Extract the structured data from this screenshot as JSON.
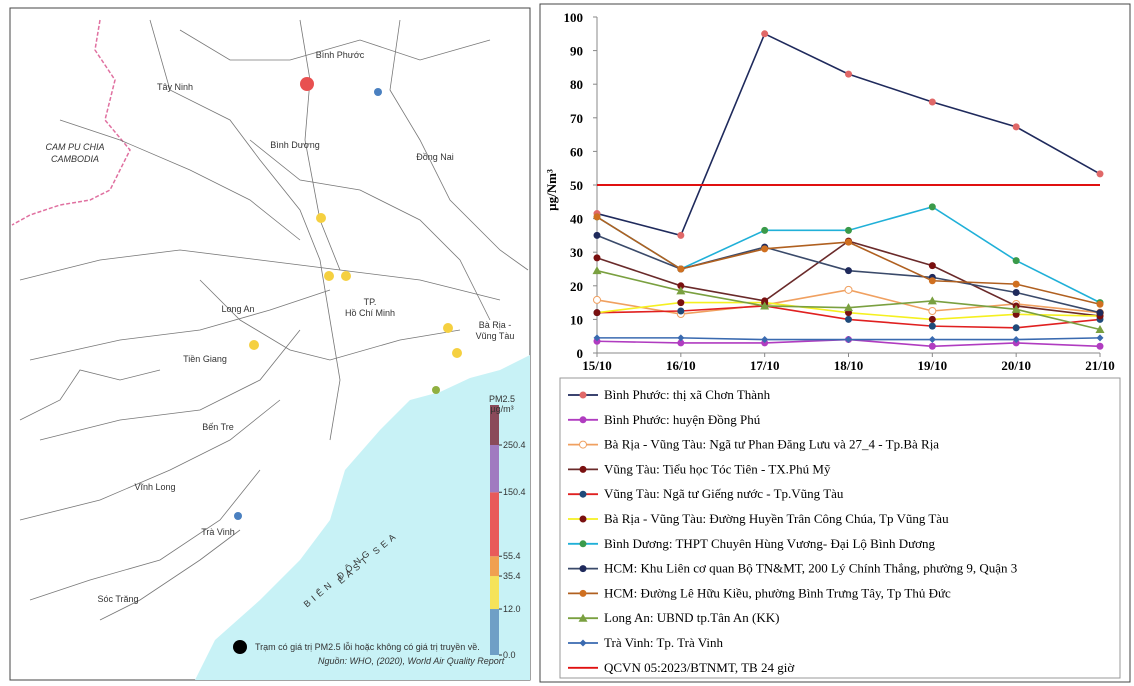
{
  "map": {
    "labels": [
      "Bình Phước",
      "Tây Ninh",
      "CAM PU CHIA",
      "CAMBODIA",
      "Bình Dương",
      "Đồng Nai",
      "Long An",
      "TP.",
      "Hồ Chí Minh",
      "Bà Rịa -",
      "Vũng Tàu",
      "Tiền Giang",
      "Bến Tre",
      "Vĩnh Long",
      "Trà Vinh",
      "Sóc Trăng",
      "BIỂN ĐÔNG",
      "EAST SEA"
    ],
    "colorbar": {
      "title": "PM2.5",
      "unit": "µg/m³",
      "ticks": [
        {
          "value": 0,
          "label": "0.0"
        },
        {
          "value": 12,
          "label": "12.0"
        },
        35.4,
        55.4,
        150.4,
        250.4
      ],
      "colors": [
        "#6f9fc6",
        "#f5e35a",
        "#f0a050",
        "#e85a5a",
        "#a07ac0"
      ]
    },
    "note": "Trạm có giá trị PM2.5 lỗi hoặc không có giá trị truyền về.",
    "source": "Nguồn: WHO, (2020), World Air Quality Report"
  },
  "chart_data": {
    "type": "line",
    "y_label": "µg/Nm³",
    "categories": [
      "15/10",
      "16/10",
      "17/10",
      "18/10",
      "19/10",
      "20/10",
      "21/10"
    ],
    "ylim": [
      0,
      100
    ],
    "yticks": [
      0,
      10,
      20,
      30,
      40,
      50,
      60,
      70,
      80,
      90,
      100
    ],
    "series": [
      {
        "name": "Bình Phước: thị xã Chơn Thành",
        "color": "#1f2a5c",
        "marker": "circle",
        "marker_color": "#e06868",
        "values": [
          41.5,
          35,
          95,
          83,
          74.7,
          67.3,
          53.3
        ]
      },
      {
        "name": "Bình Phước: huyện Đồng Phú",
        "color": "#b03cc0",
        "marker": "circle",
        "marker_color": "#b03cc0",
        "values": [
          3.5,
          3,
          3,
          4,
          2,
          3,
          2
        ]
      },
      {
        "name": "Bà Rịa - Vũng Tàu: Ngã tư Phan Đăng Lưu và 27_4 - Tp.Bà Rịa",
        "color": "#f0a060",
        "marker": "open-circle",
        "marker_color": "#f0a060",
        "values": [
          15.8,
          11.6,
          14.3,
          18.8,
          12.5,
          14.6,
          12
        ]
      },
      {
        "name": "Vũng Tàu: Tiểu học Tóc Tiên - TX.Phú Mỹ",
        "color": "#6a2a2a",
        "marker": "circle",
        "marker_color": "#7a1010",
        "values": [
          28.3,
          20,
          15.5,
          33.3,
          26,
          14,
          11
        ]
      },
      {
        "name": "Vũng Tàu: Ngã tư Giếng nước - Tp.Vũng Tàu",
        "color": "#e02020",
        "marker": "circle",
        "marker_color": "#1f4a7a",
        "values": [
          12,
          12.5,
          14,
          10,
          8,
          7.5,
          10
        ]
      },
      {
        "name": "Bà Rịa - Vũng Tàu: Đường Huyền Trân Công Chúa, Tp Vũng Tàu",
        "color": "#f5f020",
        "marker": "circle",
        "marker_color": "#7a1010",
        "values": [
          12,
          15,
          15,
          12,
          10,
          11.5,
          11
        ]
      },
      {
        "name": "Bình Dương: THPT Chuyên Hùng Vương- Đại Lộ Bình Dương",
        "color": "#20b0d8",
        "marker": "circle",
        "marker_color": "#3a9a4a",
        "values": [
          40.5,
          25,
          36.5,
          36.5,
          43.5,
          27.5,
          15
        ]
      },
      {
        "name": "HCM: Khu Liên cơ quan Bộ TN&MT, 200 Lý Chính Thắng, phường 9, Quận 3",
        "color": "#3a4a6a",
        "marker": "circle",
        "marker_color": "#1f2a5c",
        "values": [
          35,
          25,
          31.5,
          24.5,
          22.5,
          18,
          12
        ]
      },
      {
        "name": "HCM: Đường Lê Hữu Kiều, phường Bình Trưng Tây, Tp Thủ Đức",
        "color": "#b06020",
        "marker": "circle",
        "marker_color": "#d07020",
        "values": [
          40.5,
          25,
          31,
          33,
          21.5,
          20.5,
          14.5
        ]
      },
      {
        "name": "Long An: UBND tp.Tân An (KK)",
        "color": "#7aa040",
        "marker": "triangle",
        "marker_color": "#7aa040",
        "values": [
          24.5,
          18.5,
          14,
          13.5,
          15.5,
          13,
          7
        ]
      },
      {
        "name": "Trà Vinh: Tp. Trà Vinh",
        "color": "#3a6ab0",
        "marker": "diamond",
        "marker_color": "#3a6ab0",
        "values": [
          4.5,
          4.5,
          4,
          4,
          4,
          4,
          4.5
        ]
      },
      {
        "name": "QCVN 05:2023/BTNMT, TB 24 giờ",
        "color": "#e01010",
        "marker": "none",
        "marker_color": "#e01010",
        "values": [
          50,
          50,
          50,
          50,
          50,
          50,
          50
        ]
      }
    ]
  }
}
